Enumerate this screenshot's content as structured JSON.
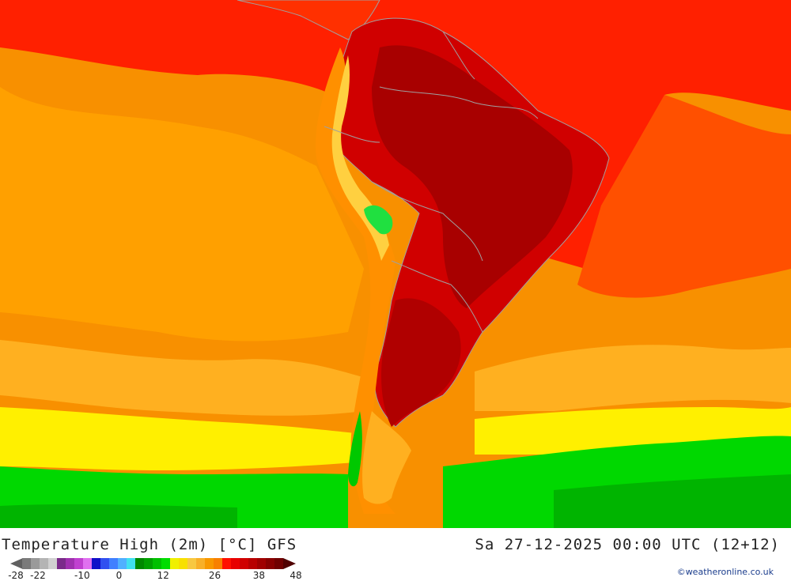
{
  "map": {
    "title": "Temperature High (2m) [°C] GFS",
    "datetime": "Sa 27-12-2025 00:00 UTC (12+12)",
    "credit": "©weatheronline.co.uk",
    "region": "South America",
    "colors": {
      "ocean_cool": "#ff9900",
      "ocean_warm": "#ff2000",
      "land_hot": "#c00000",
      "land_very_hot": "#a00000",
      "andes_cool": "#ffd040",
      "south_ocean_mid": "#ffe000",
      "south_ocean_cold": "#00d000",
      "south_ocean_deep": "#00b000",
      "borders": "#a0a0a0"
    }
  },
  "legend": {
    "colors": [
      "#7a7a7a",
      "#9a9a9a",
      "#b4b4b4",
      "#d0d0d0",
      "#7a2a8a",
      "#a030b0",
      "#c040d0",
      "#e070f0",
      "#1010c8",
      "#3050f0",
      "#4080ff",
      "#50b0ff",
      "#40e0f0",
      "#008800",
      "#00a000",
      "#00c000",
      "#00dd00",
      "#f0f000",
      "#f8e000",
      "#f8c840",
      "#f8b028",
      "#f89800",
      "#f88000",
      "#ff1000",
      "#e80000",
      "#d00000",
      "#b80000",
      "#a00000",
      "#880000",
      "#700000"
    ],
    "ticks": [
      {
        "label": "-28",
        "value": -28
      },
      {
        "label": "-22",
        "value": -22
      },
      {
        "label": "-10",
        "value": -10
      },
      {
        "label": "0",
        "value": 0
      },
      {
        "label": "12",
        "value": 12
      },
      {
        "label": "26",
        "value": 26
      },
      {
        "label": "38",
        "value": 38
      },
      {
        "label": "48",
        "value": 48
      }
    ]
  }
}
